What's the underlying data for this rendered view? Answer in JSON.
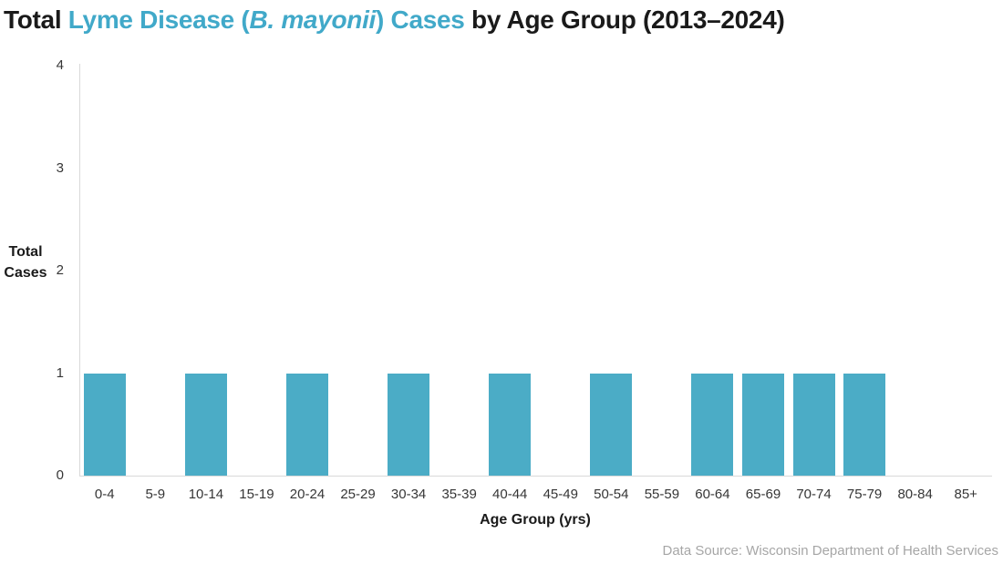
{
  "title": {
    "part1": "Total ",
    "part2": "Lyme Disease (",
    "part3": "B. mayonii",
    "part4": ") Cases",
    "part5": " by Age Group (2013–2024)",
    "accent_color": "#41A9C9",
    "text_color": "#1A1A1A"
  },
  "chart_data": {
    "type": "bar",
    "title": "Total Lyme Disease (B. mayonii) Cases by Age Group (2013–2024)",
    "categories": [
      "0-4",
      "5-9",
      "10-14",
      "15-19",
      "20-24",
      "25-29",
      "30-34",
      "35-39",
      "40-44",
      "45-49",
      "50-54",
      "55-59",
      "60-64",
      "65-69",
      "70-74",
      "75-79",
      "80-84",
      "85+"
    ],
    "values": [
      1,
      0,
      1,
      0,
      1,
      0,
      1,
      0,
      1,
      0,
      1,
      0,
      1,
      1,
      1,
      1,
      0,
      0
    ],
    "xlabel": "Age Group (yrs)",
    "ylabel": "Total\nCases",
    "ylim": [
      0,
      4
    ],
    "yticks": [
      0,
      1,
      2,
      3,
      4
    ],
    "grid": false,
    "legend_position": "none",
    "bar_color": "#4BACC6",
    "axis_color": "#D9D9D9",
    "tick_label_color": "#363636"
  },
  "footer": {
    "source": "Data Source: Wisconsin Department of Health Services",
    "color": "#A6A6A6"
  }
}
